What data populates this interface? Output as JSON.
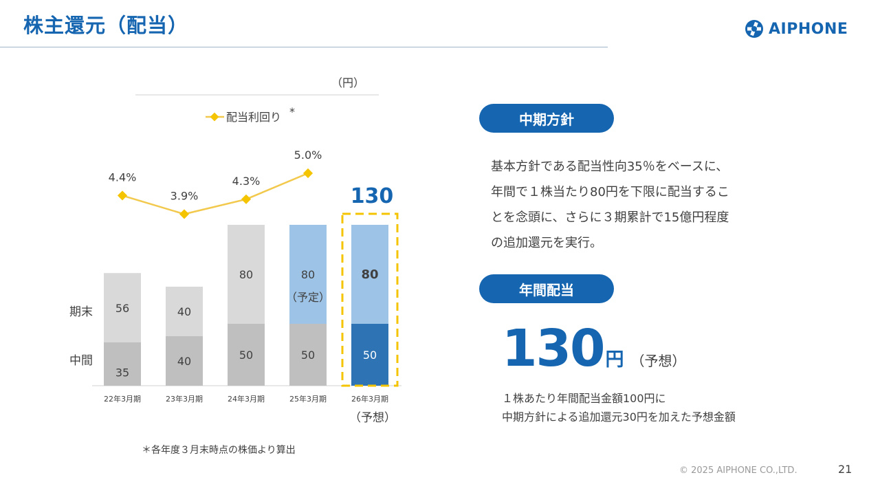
{
  "header": {
    "title": "株主還元（配当）"
  },
  "logo": {
    "text": "AIPHONE"
  },
  "chart_data": {
    "type": "bar",
    "stacked": true,
    "unit_label": "（円）",
    "categories": [
      "22年3月期",
      "23年3月期",
      "24年3月期",
      "25年3月期",
      "26年3月期"
    ],
    "category_sub": [
      "",
      "",
      "",
      "",
      "（予想）"
    ],
    "series": [
      {
        "name": "中間",
        "values": [
          35,
          40,
          50,
          50,
          50
        ]
      },
      {
        "name": "期末",
        "values": [
          56,
          40,
          80,
          80,
          80
        ]
      }
    ],
    "bar_labels_interim": [
      "35",
      "40",
      "50",
      "50",
      "50"
    ],
    "bar_labels_final": [
      "56",
      "40",
      "80",
      "80",
      "80"
    ],
    "bar_sublabel": [
      "",
      "",
      "",
      "（予定）",
      ""
    ],
    "forecast_total": "130",
    "ylim": [
      0,
      130
    ],
    "line": {
      "name": "配当利回り",
      "legend_mark": "*",
      "values": [
        4.4,
        3.9,
        4.3,
        5.0
      ],
      "labels": [
        "4.4%",
        "3.9%",
        "4.3%",
        "5.0%"
      ],
      "ylim": [
        3.0,
        5.5
      ]
    },
    "colors": {
      "past": "#d9d9d9",
      "past_interim": "#bfbfbf",
      "plan_final": "#9dc3e6",
      "forecast_interim": "#2e74b5",
      "line": "#f2c94c",
      "marker": "#f5c400",
      "highlight": "#f5c400",
      "accent": "#1565b0"
    }
  },
  "policy": {
    "pill": "中期方針",
    "lines": [
      "基本方針である配当性向35％をベースに、",
      "年間で１株当たり80円を下限に配当するこ",
      "とを念頭に、さらに３期累計で15億円程度",
      "の追加還元を実行。"
    ]
  },
  "annual": {
    "pill": "年間配当",
    "amount": "130",
    "unit": "円",
    "note": "（予想）",
    "desc_lines": [
      "１株あたり年間配当金額100円に",
      "中期方針による追加還元30円を加えた予想金額"
    ]
  },
  "footnote": "＊各年度３月末時点の株価より算出",
  "footer": {
    "copyright": "© 2025 AIPHONE CO.,LTD.",
    "page": "21"
  }
}
